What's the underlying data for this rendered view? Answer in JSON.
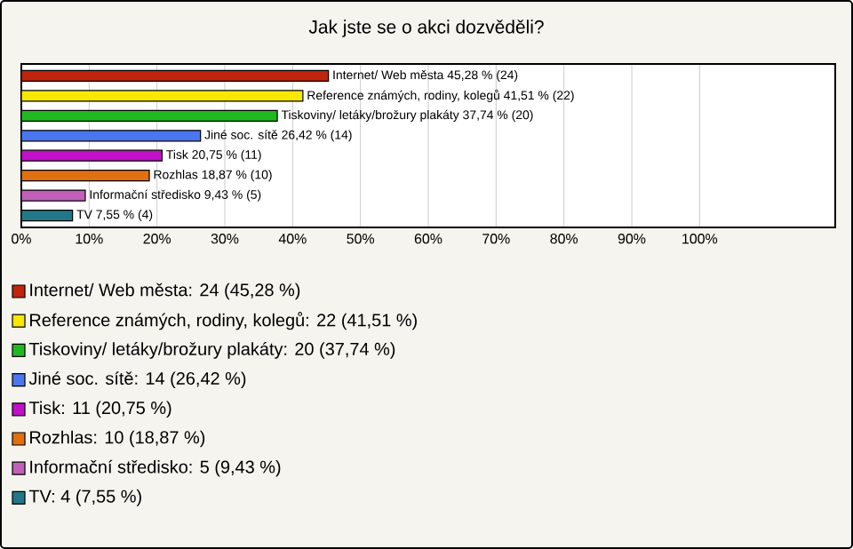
{
  "chart_data": {
    "type": "bar",
    "orientation": "horizontal",
    "title": "Jak jste se o akci dozvěděli?",
    "categories": [
      null,
      null,
      null,
      null,
      null,
      null,
      null,
      null
    ],
    "values": [
      45.28,
      41.51,
      37.74,
      26.42,
      20.75,
      18.87,
      9.43,
      7.55
    ],
    "colors": [
      "#c0240c",
      "#f8e800",
      "#22b822",
      "#4a76f0",
      "#c010c8",
      "#e07010",
      "#c060b8",
      "#207888"
    ],
    "value_labels": [
      "Internet/ Web města 45,28 % (24)",
      "Reference známých, rodiny, kolegů 41,51 % (22)",
      "Tiskoviny/ letáky/brožury plakáty 37,74 % (20)",
      "Jiné soc. sítě 26,42 % (14)",
      "Tisk 20,75 % (11)",
      "Rozhlas 18,87 % (10)",
      "Informační středisko 9,43 % (5)",
      "TV 7,55 % (4)"
    ],
    "xlim": [
      0,
      120
    ],
    "xticks": [
      {
        "value": 0,
        "label": "0%"
      },
      {
        "value": 10,
        "label": "10%"
      },
      {
        "value": 20,
        "label": "20%"
      },
      {
        "value": 30,
        "label": "30%"
      },
      {
        "value": 40,
        "label": "40%"
      },
      {
        "value": 50,
        "label": "50%"
      },
      {
        "value": 60,
        "label": "60%"
      },
      {
        "value": 70,
        "label": "70%"
      },
      {
        "value": 80,
        "label": "80%"
      },
      {
        "value": 90,
        "label": "90%"
      },
      {
        "value": 100,
        "label": "100%"
      }
    ],
    "grid": "x",
    "annotations": [
      "Internet/ Web města: 24 (45,28 %)",
      "Reference známých, rodiny, kolegů: 22 (41,51 %)",
      "Tiskoviny/ letáky/brožury plakáty: 20 (37,74 %)",
      "Jiné soc. sítě: 14 (26,42 %)",
      "Tisk: 11 (20,75 %)",
      "Rozhlas: 10 (18,87 %)",
      "Informační středisko: 5 (9,43 %)",
      "TV: 4 (7,55 %)"
    ]
  }
}
